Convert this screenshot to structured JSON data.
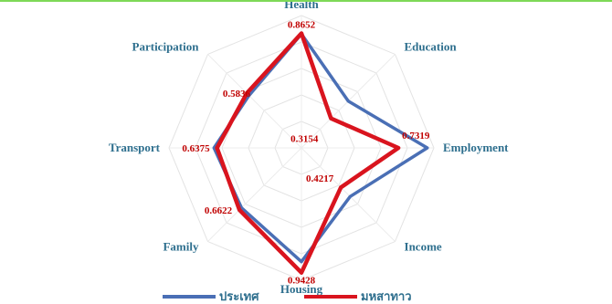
{
  "chart_data": {
    "type": "radar",
    "categories": [
      "Health",
      "Education",
      "Employment",
      "Income",
      "Housing",
      "Family",
      "Transport",
      "Participation"
    ],
    "series": [
      {
        "name": "ประเทศ",
        "color": "#4a6fb5",
        "values": [
          0.86,
          0.5,
          0.95,
          0.52,
          0.86,
          0.64,
          0.66,
          0.56
        ]
      },
      {
        "name": "มหสาทาว",
        "color": "#d9141e",
        "values": [
          0.8652,
          0.3154,
          0.7319,
          0.4217,
          0.9428,
          0.6622,
          0.6375,
          0.5836
        ]
      }
    ],
    "data_labels": [
      "0.8652",
      "0.3154",
      "0.7319",
      "0.4217",
      "0.9428",
      "0.6622",
      "0.6375",
      "0.5836"
    ],
    "rlim": [
      0,
      1
    ],
    "grid": true,
    "legend_position": "bottom"
  }
}
